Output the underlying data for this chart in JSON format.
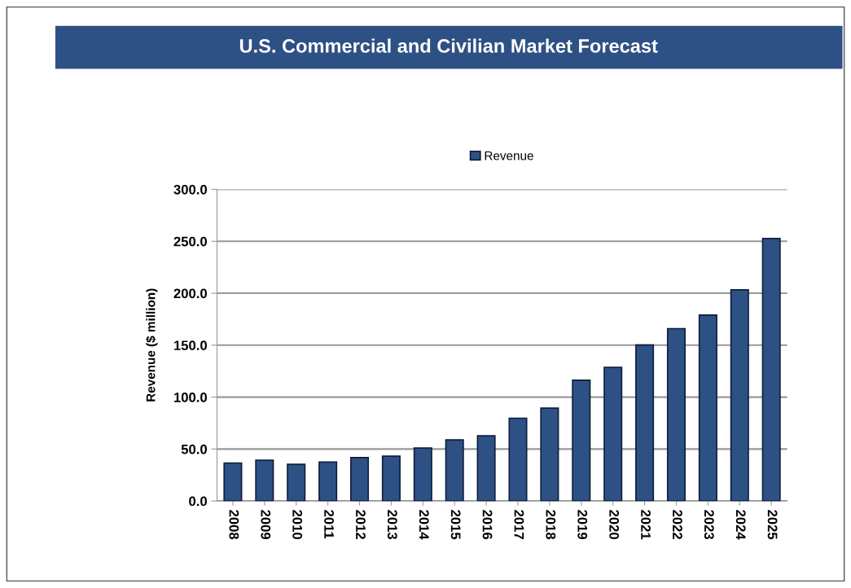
{
  "chart_data": {
    "type": "bar",
    "title": "U.S. Commercial and Civilian Market Forecast",
    "ylabel": "Revenue ($ million)",
    "categories": [
      "2008",
      "2009",
      "2010",
      "2011",
      "2012",
      "2013",
      "2014",
      "2015",
      "2016",
      "2017",
      "2018",
      "2019",
      "2020",
      "2021",
      "2022",
      "2023",
      "2024",
      "2025"
    ],
    "series": [
      {
        "name": "Revenue",
        "color": "#2e5185",
        "values": [
          36.6,
          39.2,
          35.3,
          37.4,
          41.8,
          43.1,
          51.0,
          58.8,
          62.7,
          79.7,
          89.4,
          116.3,
          128.6,
          150.2,
          165.9,
          179.0,
          203.3,
          252.7
        ]
      }
    ],
    "ylim": [
      0,
      300
    ],
    "yticks": [
      {
        "value": 0,
        "label": "0.0"
      },
      {
        "value": 50,
        "label": "50.0"
      },
      {
        "value": 100,
        "label": "100.0"
      },
      {
        "value": 150,
        "label": "150.0"
      },
      {
        "value": 200,
        "label": "200.0"
      },
      {
        "value": 250,
        "label": "250.0"
      },
      {
        "value": 300,
        "label": "300.0"
      }
    ],
    "grid": "y",
    "legend": "top"
  }
}
